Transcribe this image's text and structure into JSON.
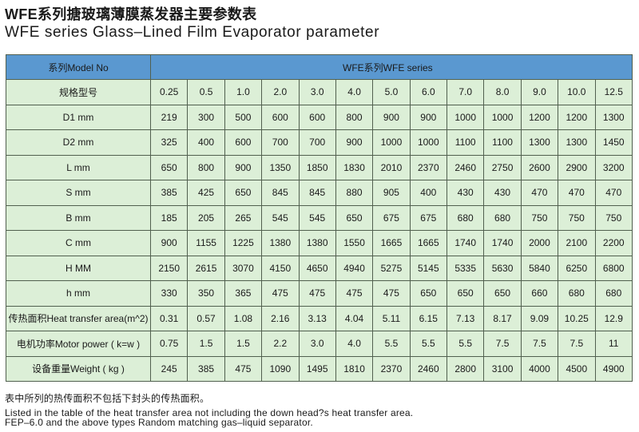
{
  "title": "WFE系列搪玻璃薄膜蒸发器主要参数表",
  "subtitle": "WFE series Glass–Lined Film Evaporator parameter",
  "table": {
    "header_label": "系列Model No",
    "header_series": "WFE系列WFE series",
    "rows": [
      {
        "label": "规格型号",
        "values": [
          "0.25",
          "0.5",
          "1.0",
          "2.0",
          "3.0",
          "4.0",
          "5.0",
          "6.0",
          "7.0",
          "8.0",
          "9.0",
          "10.0",
          "12.5"
        ]
      },
      {
        "label": "D1 mm",
        "values": [
          "219",
          "300",
          "500",
          "600",
          "600",
          "800",
          "900",
          "900",
          "1000",
          "1000",
          "1200",
          "1200",
          "1300"
        ]
      },
      {
        "label": "D2 mm",
        "values": [
          "325",
          "400",
          "600",
          "700",
          "700",
          "900",
          "1000",
          "1000",
          "1100",
          "1100",
          "1300",
          "1300",
          "1450"
        ]
      },
      {
        "label": "L mm",
        "values": [
          "650",
          "800",
          "900",
          "1350",
          "1850",
          "1830",
          "2010",
          "2370",
          "2460",
          "2750",
          "2600",
          "2900",
          "3200"
        ]
      },
      {
        "label": "S mm",
        "values": [
          "385",
          "425",
          "650",
          "845",
          "845",
          "880",
          "905",
          "400",
          "430",
          "430",
          "470",
          "470",
          "470"
        ]
      },
      {
        "label": "B mm",
        "values": [
          "185",
          "205",
          "265",
          "545",
          "545",
          "650",
          "675",
          "675",
          "680",
          "680",
          "750",
          "750",
          "750"
        ]
      },
      {
        "label": "C mm",
        "values": [
          "900",
          "1155",
          "1225",
          "1380",
          "1380",
          "1550",
          "1665",
          "1665",
          "1740",
          "1740",
          "2000",
          "2100",
          "2200"
        ]
      },
      {
        "label": "H MM",
        "values": [
          "2150",
          "2615",
          "3070",
          "4150",
          "4650",
          "4940",
          "5275",
          "5145",
          "5335",
          "5630",
          "5840",
          "6250",
          "6800"
        ]
      },
      {
        "label": "h mm",
        "values": [
          "330",
          "350",
          "365",
          "475",
          "475",
          "475",
          "475",
          "650",
          "650",
          "650",
          "660",
          "680",
          "680"
        ]
      },
      {
        "label": "传热面积Heat transfer area(m^2)",
        "values": [
          "0.31",
          "0.57",
          "1.08",
          "2.16",
          "3.13",
          "4.04",
          "5.11",
          "6.15",
          "7.13",
          "8.17",
          "9.09",
          "10.25",
          "12.9"
        ]
      },
      {
        "label": "电机功率Motor power ( k=w )",
        "values": [
          "0.75",
          "1.5",
          "1.5",
          "2.2",
          "3.0",
          "4.0",
          "5.5",
          "5.5",
          "5.5",
          "7.5",
          "7.5",
          "7.5",
          "11"
        ]
      },
      {
        "label": "设备重量Weight ( kg )",
        "values": [
          "245",
          "385",
          "475",
          "1090",
          "1495",
          "1810",
          "2370",
          "2460",
          "2800",
          "3100",
          "4000",
          "4500",
          "4900"
        ]
      }
    ]
  },
  "notes": [
    "表中所列的热传面积不包括下封头的传热面积。",
    "Listed in the table of the heat transfer area not including the down head?s heat transfer area.",
    "FEP–6.0 and the above types Random matching gas–liquid separator."
  ],
  "colors": {
    "header": "#5a98d0",
    "cell": "#dcefd7",
    "border": "#51604f"
  }
}
